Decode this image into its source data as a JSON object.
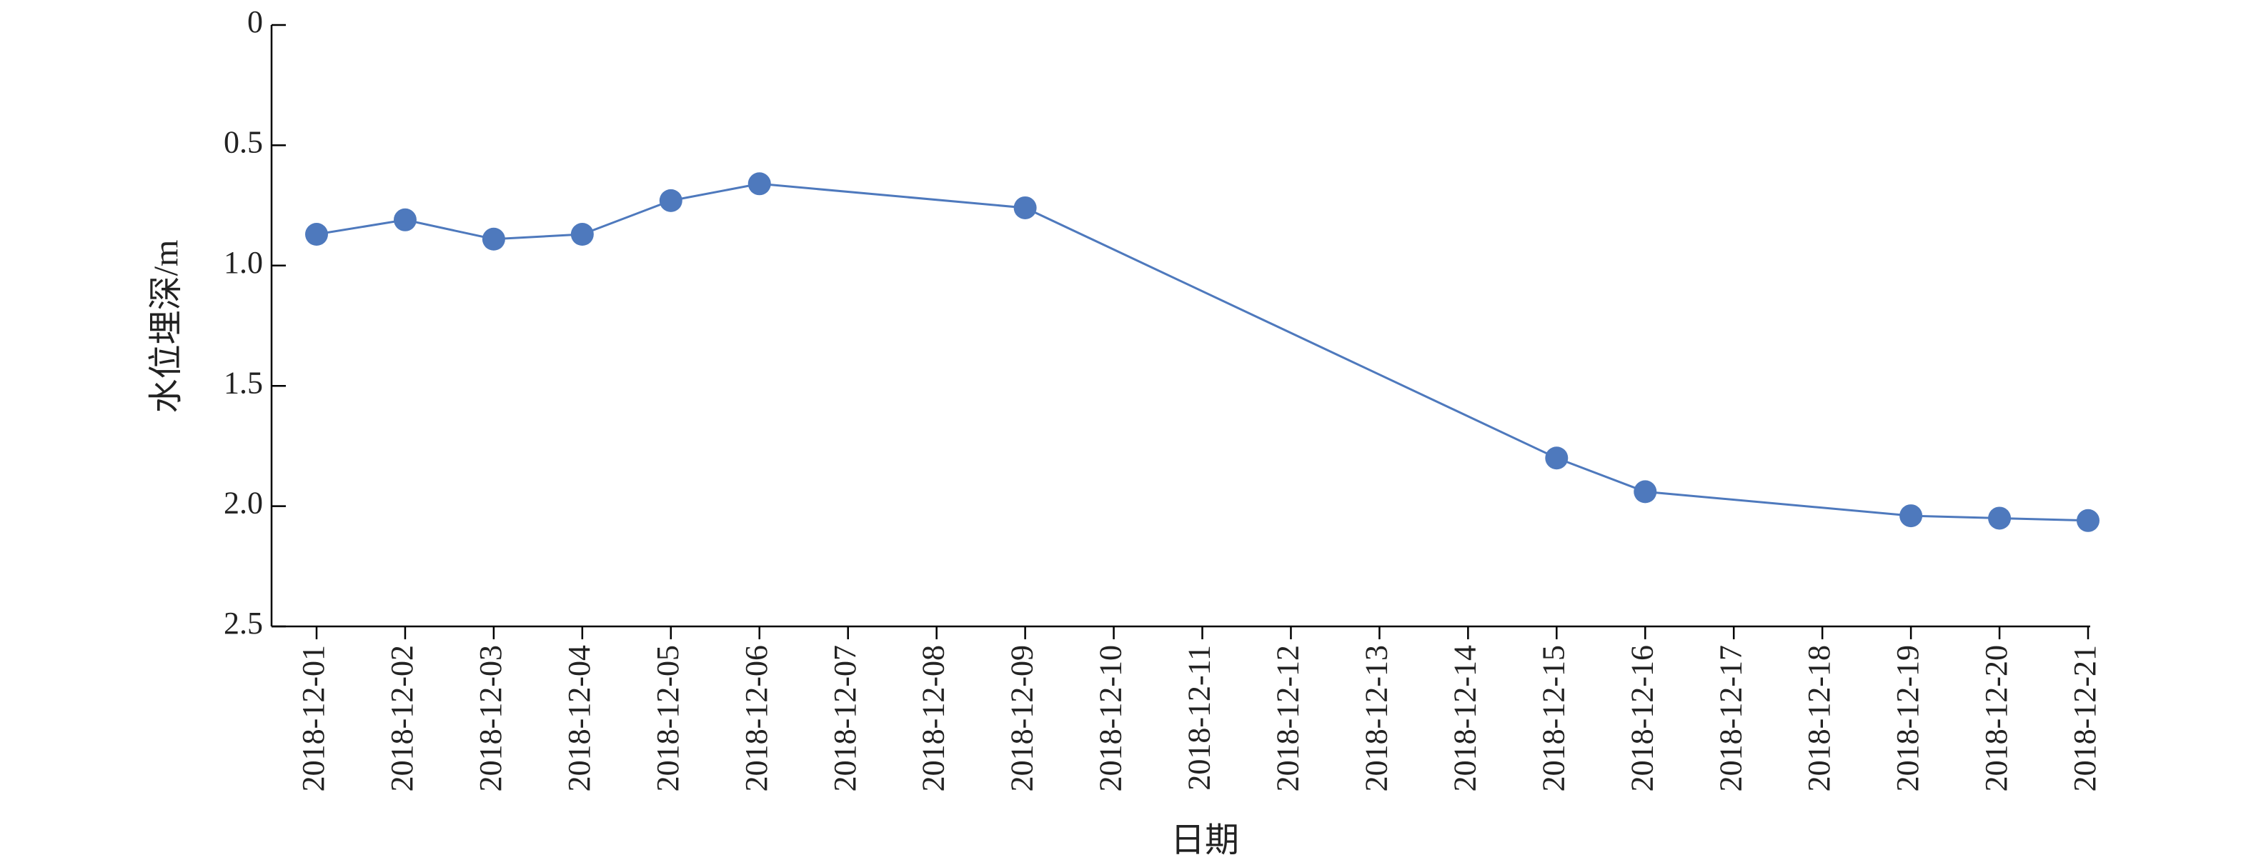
{
  "chart_data": {
    "type": "line",
    "x": [
      "2018-12-01",
      "2018-12-02",
      "2018-12-03",
      "2018-12-04",
      "2018-12-05",
      "2018-12-06",
      "2018-12-09",
      "2018-12-15",
      "2018-12-16",
      "2018-12-19",
      "2018-12-20",
      "2018-12-21"
    ],
    "series": [
      {
        "color": "#4e79bd",
        "values": [
          0.87,
          0.81,
          0.89,
          0.87,
          0.73,
          0.66,
          0.76,
          1.8,
          1.94,
          2.04,
          2.05,
          2.06
        ]
      }
    ],
    "xlabel": "日期",
    "ylabel": "水位埋深/m",
    "xlim": [
      "2018-12-01",
      "2018-12-21"
    ],
    "xticks": [
      "2018-12-01",
      "2018-12-02",
      "2018-12-03",
      "2018-12-04",
      "2018-12-05",
      "2018-12-06",
      "2018-12-07",
      "2018-12-08",
      "2018-12-09",
      "2018-12-10",
      "2018-12-11",
      "2018-12-12",
      "2018-12-13",
      "2018-12-14",
      "2018-12-15",
      "2018-12-16",
      "2018-12-17",
      "2018-12-18",
      "2018-12-19",
      "2018-12-20",
      "2018-12-21"
    ],
    "ylim": [
      0,
      2.5
    ],
    "y_inverted": true,
    "yticks": [
      0,
      0.5,
      {
        "value": 1,
        "label": "1.0"
      },
      1.5,
      {
        "value": 2,
        "label": "2.0"
      },
      2.5
    ],
    "grid": false
  }
}
